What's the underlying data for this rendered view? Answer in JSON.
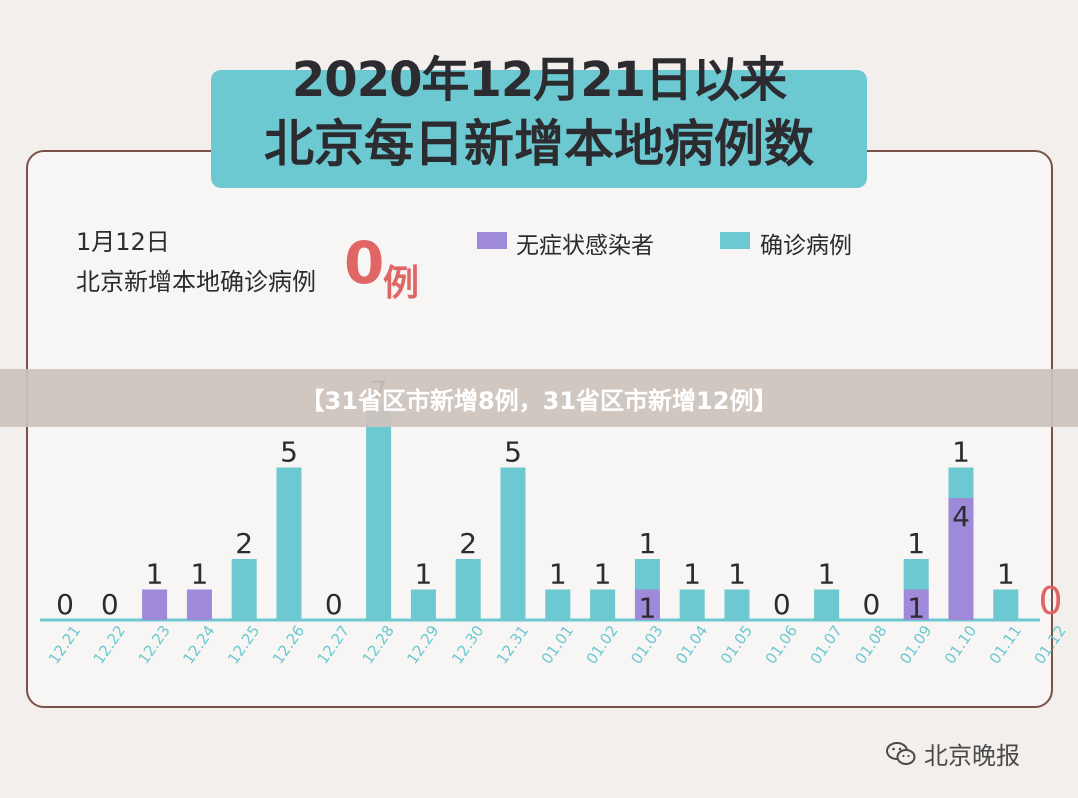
{
  "title": {
    "line1": "2020年12月21日以来",
    "line2": "北京每日新增本地病例数"
  },
  "highlight": {
    "date": "1月12日",
    "label": "北京新增本地确诊病例",
    "value": "0",
    "unit": "例"
  },
  "banner_text": "【31省区市新增8例，31省区市新增12例】",
  "watermark": "北京晚报",
  "colors": {
    "asymptomatic": "#9e8ad9",
    "confirmed": "#6cc9d1",
    "highlight": "#e06565",
    "axis": "#6cc9d1"
  },
  "chart_data": {
    "type": "bar",
    "stacked": true,
    "categories": [
      "12.21",
      "12.22",
      "12.23",
      "12.24",
      "12.25",
      "12.26",
      "12.27",
      "12.28",
      "12.29",
      "12.30",
      "12.31",
      "01.01",
      "01.02",
      "01.03",
      "01.04",
      "01.05",
      "01.06",
      "01.07",
      "01.08",
      "01.09",
      "01.10",
      "01.11",
      "01.12"
    ],
    "series": [
      {
        "name": "无症状感染者",
        "values": [
          0,
          0,
          1,
          1,
          0,
          0,
          0,
          0,
          0,
          0,
          0,
          0,
          0,
          1,
          0,
          0,
          0,
          0,
          0,
          1,
          4,
          0,
          0
        ]
      },
      {
        "name": "确诊病例",
        "values": [
          0,
          0,
          0,
          0,
          2,
          5,
          0,
          7,
          1,
          2,
          5,
          1,
          1,
          1,
          1,
          1,
          0,
          1,
          0,
          1,
          1,
          1,
          0
        ]
      }
    ],
    "legend": "top-right",
    "grid": false
  }
}
